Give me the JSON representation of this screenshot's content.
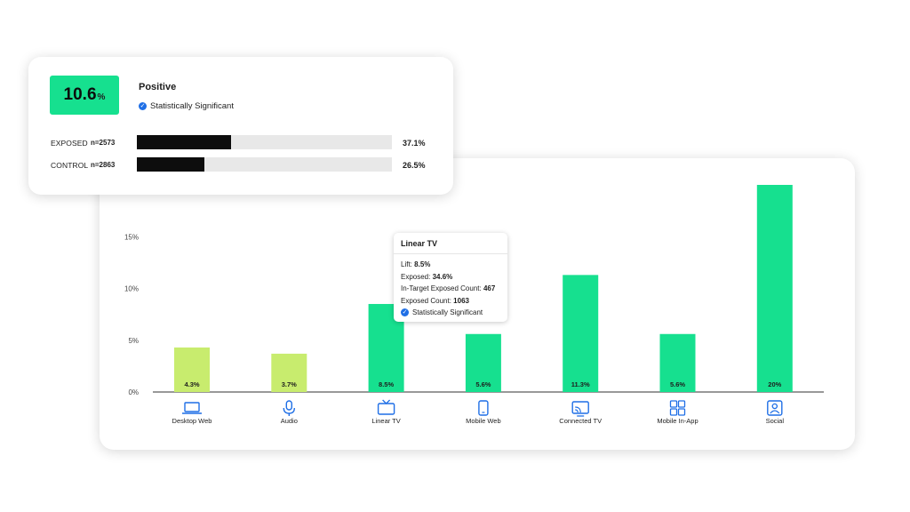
{
  "summary": {
    "lift_value": "10.6",
    "lift_unit": "%",
    "result_label": "Positive",
    "significance": "Statistically Significant",
    "groups": [
      {
        "label": "EXPOSED",
        "n": "n=2573",
        "percent": 37.1,
        "percent_label": "37.1%"
      },
      {
        "label": "CONTROL",
        "n": "n=2863",
        "percent": 26.5,
        "percent_label": "26.5%"
      }
    ]
  },
  "tooltip": {
    "title": "Linear TV",
    "lift_label": "Lift:",
    "lift_value": "8.5%",
    "exposed_label": "Exposed:",
    "exposed_value": "34.6%",
    "in_target_label": "In-Target Exposed Count:",
    "in_target_value": "467",
    "exposed_count_label": "Exposed Count:",
    "exposed_count_value": "1063",
    "significance": "Statistically Significant"
  },
  "chart_data": {
    "type": "bar",
    "categories": [
      "Desktop Web",
      "Audio",
      "Linear TV",
      "Mobile Web",
      "Connected TV",
      "Mobile In-App",
      "Social"
    ],
    "values": [
      4.3,
      3.7,
      8.5,
      5.6,
      11.3,
      5.6,
      20
    ],
    "value_labels": [
      "4.3%",
      "3.7%",
      "8.5%",
      "5.6%",
      "11.3%",
      "5.6%",
      "20%"
    ],
    "bar_colors": [
      "#c8ec6e",
      "#c8ec6e",
      "#16e08f",
      "#16e08f",
      "#16e08f",
      "#16e08f",
      "#16e08f"
    ],
    "icons": [
      "laptop-icon",
      "microphone-icon",
      "tv-icon",
      "mobile-phone-icon",
      "connected-tv-icon",
      "app-grid-icon",
      "social-profile-icon"
    ],
    "yticks": [
      0,
      5,
      10,
      15
    ],
    "ytick_labels": [
      "0%",
      "5%",
      "10%",
      "15%"
    ],
    "ylim": [
      0,
      20
    ],
    "grid": false,
    "xlabel": "",
    "ylabel": ""
  },
  "colors": {
    "accent_green": "#16e08f",
    "light_green": "#c8ec6e",
    "icon_blue": "#1f6fe6",
    "bar_fill_dark": "#0d0d0d"
  }
}
